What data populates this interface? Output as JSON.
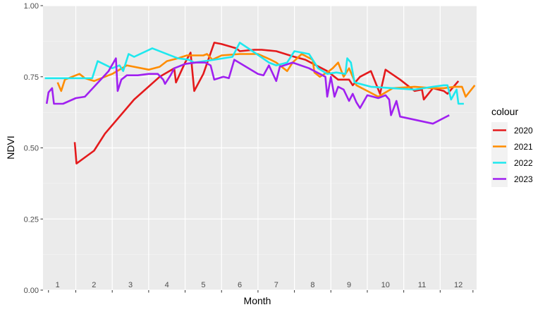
{
  "chart_data": {
    "type": "line",
    "title": "",
    "xlabel": "Month",
    "ylabel": "NDVI",
    "xlim": [
      0.6,
      12.5
    ],
    "ylim": [
      0,
      1
    ],
    "grid": true,
    "legend_position": "right",
    "legend_title": "colour",
    "x_ticks": [
      1,
      2,
      3,
      4,
      5,
      6,
      7,
      8,
      9,
      10,
      11,
      12
    ],
    "x_tick_labels": [
      "1",
      "2",
      "3",
      "4",
      "5",
      "6",
      "7",
      "8",
      "9",
      "10",
      "11",
      "12"
    ],
    "y_ticks": [
      0,
      0.25,
      0.5,
      0.75,
      1
    ],
    "y_tick_labels": [
      "0.00",
      "0.25",
      "0.50",
      "0.75",
      "1.00"
    ],
    "series": [
      {
        "name": "2020",
        "color": "#e41a1c",
        "points": [
          [
            1.47,
            0.52
          ],
          [
            1.52,
            0.445
          ],
          [
            2.0,
            0.49
          ],
          [
            2.3,
            0.55
          ],
          [
            3.1,
            0.67
          ],
          [
            3.8,
            0.75
          ],
          [
            4.2,
            0.78
          ],
          [
            4.25,
            0.73
          ],
          [
            4.5,
            0.8
          ],
          [
            4.65,
            0.835
          ],
          [
            4.75,
            0.7
          ],
          [
            5.0,
            0.76
          ],
          [
            5.3,
            0.87
          ],
          [
            5.5,
            0.865
          ],
          [
            5.9,
            0.85
          ],
          [
            6.0,
            0.84
          ],
          [
            6.4,
            0.845
          ],
          [
            6.6,
            0.845
          ],
          [
            7.0,
            0.84
          ],
          [
            7.5,
            0.82
          ],
          [
            7.8,
            0.81
          ],
          [
            8.4,
            0.77
          ],
          [
            8.7,
            0.74
          ],
          [
            9.0,
            0.74
          ],
          [
            9.1,
            0.72
          ],
          [
            9.3,
            0.75
          ],
          [
            9.6,
            0.77
          ],
          [
            9.85,
            0.69
          ],
          [
            10.0,
            0.775
          ],
          [
            10.4,
            0.74
          ],
          [
            10.8,
            0.7
          ],
          [
            11.0,
            0.705
          ],
          [
            11.05,
            0.67
          ],
          [
            11.3,
            0.71
          ],
          [
            11.6,
            0.7
          ],
          [
            11.7,
            0.69
          ],
          [
            12.0,
            0.735
          ]
        ]
      },
      {
        "name": "2021",
        "color": "#ff8c00",
        "points": [
          [
            1.0,
            0.73
          ],
          [
            1.1,
            0.7
          ],
          [
            1.2,
            0.74
          ],
          [
            1.6,
            0.76
          ],
          [
            1.75,
            0.745
          ],
          [
            2.0,
            0.735
          ],
          [
            2.5,
            0.76
          ],
          [
            2.9,
            0.79
          ],
          [
            3.5,
            0.775
          ],
          [
            3.8,
            0.785
          ],
          [
            4.0,
            0.805
          ],
          [
            4.3,
            0.815
          ],
          [
            4.55,
            0.825
          ],
          [
            5.0,
            0.825
          ],
          [
            5.1,
            0.83
          ],
          [
            5.25,
            0.81
          ],
          [
            5.5,
            0.825
          ],
          [
            6.0,
            0.83
          ],
          [
            6.5,
            0.83
          ],
          [
            6.85,
            0.81
          ],
          [
            7.0,
            0.8
          ],
          [
            7.3,
            0.77
          ],
          [
            7.45,
            0.8
          ],
          [
            7.7,
            0.83
          ],
          [
            8.0,
            0.81
          ],
          [
            8.05,
            0.765
          ],
          [
            8.2,
            0.75
          ],
          [
            8.45,
            0.77
          ],
          [
            8.55,
            0.78
          ],
          [
            8.7,
            0.8
          ],
          [
            8.85,
            0.75
          ],
          [
            9.0,
            0.78
          ],
          [
            9.2,
            0.72
          ],
          [
            9.5,
            0.7
          ],
          [
            9.8,
            0.68
          ],
          [
            10.2,
            0.71
          ],
          [
            10.8,
            0.715
          ],
          [
            11.3,
            0.71
          ],
          [
            11.6,
            0.71
          ],
          [
            11.9,
            0.715
          ],
          [
            12.1,
            0.715
          ],
          [
            12.2,
            0.68
          ],
          [
            12.45,
            0.72
          ]
        ]
      },
      {
        "name": "2022",
        "color": "#1ee8ee",
        "points": [
          [
            0.65,
            0.745
          ],
          [
            1.0,
            0.745
          ],
          [
            1.5,
            0.745
          ],
          [
            1.95,
            0.745
          ],
          [
            2.1,
            0.805
          ],
          [
            2.5,
            0.78
          ],
          [
            2.7,
            0.79
          ],
          [
            2.8,
            0.77
          ],
          [
            2.95,
            0.83
          ],
          [
            3.1,
            0.82
          ],
          [
            3.6,
            0.85
          ],
          [
            4.3,
            0.815
          ],
          [
            4.6,
            0.81
          ],
          [
            4.75,
            0.8
          ],
          [
            5.3,
            0.81
          ],
          [
            5.8,
            0.82
          ],
          [
            6.0,
            0.87
          ],
          [
            6.35,
            0.84
          ],
          [
            6.8,
            0.8
          ],
          [
            7.0,
            0.79
          ],
          [
            7.3,
            0.8
          ],
          [
            7.5,
            0.84
          ],
          [
            7.9,
            0.83
          ],
          [
            8.15,
            0.78
          ],
          [
            8.4,
            0.76
          ],
          [
            8.65,
            0.765
          ],
          [
            8.9,
            0.76
          ],
          [
            8.95,
            0.815
          ],
          [
            9.05,
            0.8
          ],
          [
            9.15,
            0.73
          ],
          [
            9.6,
            0.715
          ],
          [
            10.2,
            0.71
          ],
          [
            10.8,
            0.705
          ],
          [
            11.3,
            0.715
          ],
          [
            11.6,
            0.72
          ],
          [
            11.7,
            0.72
          ],
          [
            11.8,
            0.67
          ],
          [
            11.95,
            0.705
          ],
          [
            12.0,
            0.655
          ],
          [
            12.15,
            0.655
          ]
        ]
      },
      {
        "name": "2023",
        "color": "#a020f0",
        "points": [
          [
            0.7,
            0.655
          ],
          [
            0.75,
            0.695
          ],
          [
            0.85,
            0.71
          ],
          [
            0.9,
            0.655
          ],
          [
            1.15,
            0.655
          ],
          [
            1.5,
            0.675
          ],
          [
            1.75,
            0.68
          ],
          [
            2.4,
            0.77
          ],
          [
            2.6,
            0.815
          ],
          [
            2.65,
            0.7
          ],
          [
            2.75,
            0.74
          ],
          [
            2.9,
            0.755
          ],
          [
            3.2,
            0.755
          ],
          [
            3.5,
            0.76
          ],
          [
            3.75,
            0.76
          ],
          [
            3.9,
            0.74
          ],
          [
            3.95,
            0.725
          ],
          [
            4.1,
            0.755
          ],
          [
            4.2,
            0.78
          ],
          [
            4.5,
            0.795
          ],
          [
            4.8,
            0.8
          ],
          [
            5.05,
            0.8
          ],
          [
            5.2,
            0.79
          ],
          [
            5.3,
            0.74
          ],
          [
            5.55,
            0.75
          ],
          [
            5.7,
            0.745
          ],
          [
            5.85,
            0.81
          ],
          [
            6.5,
            0.76
          ],
          [
            6.65,
            0.755
          ],
          [
            6.8,
            0.79
          ],
          [
            7.0,
            0.735
          ],
          [
            7.1,
            0.785
          ],
          [
            7.45,
            0.8
          ],
          [
            7.9,
            0.78
          ],
          [
            8.35,
            0.75
          ],
          [
            8.4,
            0.68
          ],
          [
            8.5,
            0.75
          ],
          [
            8.6,
            0.68
          ],
          [
            8.7,
            0.715
          ],
          [
            8.85,
            0.705
          ],
          [
            9.0,
            0.665
          ],
          [
            9.1,
            0.69
          ],
          [
            9.2,
            0.66
          ],
          [
            9.3,
            0.64
          ],
          [
            9.5,
            0.685
          ],
          [
            9.8,
            0.675
          ],
          [
            10.0,
            0.685
          ],
          [
            10.1,
            0.67
          ],
          [
            10.15,
            0.615
          ],
          [
            10.3,
            0.665
          ],
          [
            10.4,
            0.61
          ],
          [
            11.3,
            0.585
          ],
          [
            11.75,
            0.615
          ]
        ]
      }
    ]
  }
}
